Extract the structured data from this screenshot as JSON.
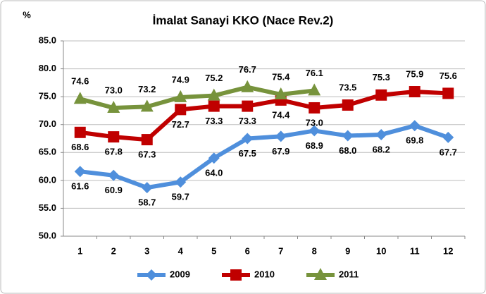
{
  "chart_data": {
    "type": "line",
    "title": "İmalat Sanayi KKO (Nace Rev.2)",
    "y_label": "%",
    "categories": [
      "1",
      "2",
      "3",
      "4",
      "5",
      "6",
      "7",
      "8",
      "9",
      "10",
      "11",
      "12"
    ],
    "series": [
      {
        "name": "2009",
        "color": "#4f8fdc",
        "marker": "diamond",
        "values": [
          61.6,
          60.9,
          58.7,
          59.7,
          64.0,
          67.5,
          67.9,
          68.9,
          68.0,
          68.2,
          69.8,
          67.7
        ],
        "value_labels": [
          "61.6",
          "60.9",
          "58.7",
          "59.7",
          "64.0",
          "67.5",
          "67.9",
          "68.9",
          "68.0",
          "68.2",
          "69.8",
          "67.7"
        ]
      },
      {
        "name": "2010",
        "color": "#c00000",
        "marker": "square",
        "values": [
          68.6,
          67.8,
          67.3,
          72.7,
          73.3,
          73.3,
          74.4,
          73.0,
          73.5,
          75.3,
          75.9,
          75.6
        ],
        "value_labels": [
          "68.6",
          "67.8",
          "67.3",
          "72.7",
          "73.3",
          "73.3",
          "74.4",
          "73.0",
          "73.5",
          "75.3",
          "75.9",
          "75.6"
        ]
      },
      {
        "name": "2011",
        "color": "#77933c",
        "marker": "triangle",
        "values": [
          74.6,
          73.0,
          73.2,
          74.9,
          75.2,
          76.7,
          75.4,
          76.1,
          null,
          null,
          null,
          null
        ],
        "value_labels": [
          "74.6",
          "73.0",
          "73.2",
          "74.9",
          "75.2",
          "76.7",
          "75.4",
          "76.1",
          null,
          null,
          null,
          null
        ]
      }
    ],
    "ylim": [
      50,
      85
    ],
    "yticks": [
      {
        "value": 50,
        "label": "50.0"
      },
      {
        "value": 55,
        "label": "55.0"
      },
      {
        "value": 60,
        "label": "60.0"
      },
      {
        "value": 65,
        "label": "65.0"
      },
      {
        "value": 70,
        "label": "70.0"
      },
      {
        "value": 75,
        "label": "75.0"
      },
      {
        "value": 80,
        "label": "80.0"
      },
      {
        "value": 85,
        "label": "85.0"
      }
    ],
    "grid": true,
    "legend": "bottom"
  }
}
